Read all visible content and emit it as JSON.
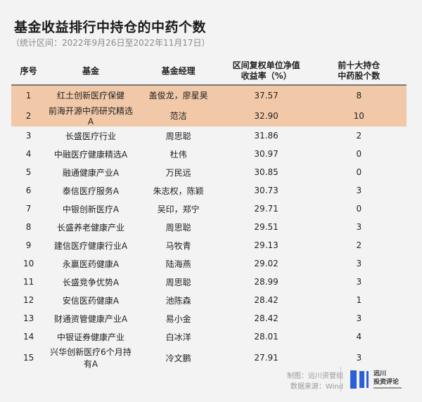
{
  "title": "基金收益排行中持仓的中药个数",
  "subtitle": "（统计区间：2022年9月26日至2022年11月17日）",
  "colors": {
    "highlight": "#f2c9a8",
    "background": "#f3f3f3",
    "logo_blue": "#2b5fd9"
  },
  "chart_data": {
    "type": "table",
    "columns": [
      "序号",
      "基金",
      "基金经理",
      "区间复权单位净值\n收益率（%）",
      "前十大持仓\n中药股个数"
    ],
    "header_lines": [
      [
        "序号"
      ],
      [
        "基金"
      ],
      [
        "基金经理"
      ],
      [
        "区间复权单位净值",
        "收益率（%）"
      ],
      [
        "前十大持仓",
        "中药股个数"
      ]
    ],
    "highlighted_rows": [
      1,
      2
    ],
    "rows": [
      [
        "1",
        "红土创新医疗保健",
        "盖俊龙，廖星昊",
        "37.57",
        "8"
      ],
      [
        "2",
        "前海开源中药研究精选A",
        "范洁",
        "32.90",
        "10"
      ],
      [
        "3",
        "长盛医疗行业",
        "周思聪",
        "31.86",
        "2"
      ],
      [
        "4",
        "中融医疗健康精选A",
        "杜伟",
        "30.97",
        "0"
      ],
      [
        "5",
        "融通健康产业A",
        "万民远",
        "30.85",
        "0"
      ],
      [
        "6",
        "泰信医疗服务A",
        "朱志权，陈颖",
        "30.73",
        "3"
      ],
      [
        "7",
        "中银创新医疗A",
        "吴印，郑宁",
        "29.71",
        "0"
      ],
      [
        "8",
        "长盛养老健康产业",
        "周思聪",
        "29.51",
        "3"
      ],
      [
        "9",
        "建信医疗健康行业A",
        "马牧青",
        "29.13",
        "2"
      ],
      [
        "10",
        "永赢医药健康A",
        "陆海燕",
        "29.02",
        "3"
      ],
      [
        "11",
        "长盛竞争优势A",
        "周思聪",
        "28.99",
        "3"
      ],
      [
        "12",
        "安信医药健康A",
        "池陈森",
        "28.42",
        "1"
      ],
      [
        "13",
        "财通资管健康产业A",
        "易小金",
        "28.42",
        "3"
      ],
      [
        "14",
        "中银证券健康产业",
        "白冰洋",
        "28.01",
        "4"
      ],
      [
        "15",
        "兴华创新医疗6个月持有A",
        "冷文鹏",
        "27.91",
        "3"
      ]
    ]
  },
  "footer": {
    "made_by": "制图：远川资管组",
    "source": "数据来源：Wind"
  },
  "logo": {
    "line1": "远川",
    "line2": "投资评论"
  }
}
